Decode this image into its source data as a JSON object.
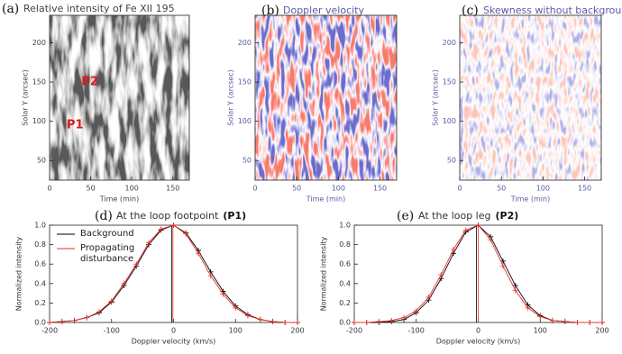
{
  "chart_data": [
    {
      "type": "image",
      "panel_label": "(a)",
      "title": "Relative intensity of Fe XII 195",
      "xlabel": "Time (min)",
      "ylabel": "Solar Y (arcsec)",
      "text_color": "#444444",
      "xlim": [
        0,
        170
      ],
      "xticks": [
        0,
        50,
        100,
        150
      ],
      "ylim": [
        25,
        235
      ],
      "yticks": [
        50,
        100,
        150,
        200
      ],
      "annotations": [
        "P1",
        "P2"
      ]
    },
    {
      "type": "image",
      "panel_label": "(b)",
      "title": "Doppler velocity",
      "xlabel": "Time (min)",
      "ylabel": "Solar Y (arcsec)",
      "text_color": "#5a5aa8",
      "xlim": [
        0,
        170
      ],
      "xticks": [
        0,
        50,
        100,
        150
      ],
      "ylim": [
        25,
        235
      ],
      "yticks": [
        50,
        100,
        150,
        200
      ]
    },
    {
      "type": "image",
      "panel_label": "(c)",
      "title": "Skewness without background",
      "xlabel": "Time (min)",
      "ylabel": "Solar Y (arcsec)",
      "text_color": "#5a5aa8",
      "xlim": [
        0,
        170
      ],
      "xticks": [
        0,
        50,
        100,
        150
      ],
      "ylim": [
        25,
        235
      ],
      "yticks": [
        50,
        100,
        150,
        200
      ]
    },
    {
      "type": "line",
      "panel_label": "(d)",
      "title": "At the loop footpoint",
      "title_tag": "(P1)",
      "xlabel": "Doppler velocity (km/s)",
      "ylabel": "Normalized intensity",
      "text_color": "#333333",
      "legend": true,
      "xlim": [
        -200,
        200
      ],
      "xticks": [
        -200,
        -100,
        0,
        100,
        200
      ],
      "ylim": [
        0,
        1
      ],
      "yticks": [
        {
          "value": 0,
          "label": "0.0"
        },
        0.2,
        0.4,
        0.6,
        0.8,
        {
          "value": 1,
          "label": "1.0"
        }
      ],
      "x": [
        -200,
        -180,
        -160,
        -140,
        -120,
        -100,
        -80,
        -60,
        -40,
        -20,
        0,
        20,
        40,
        60,
        80,
        100,
        120,
        140,
        160,
        180,
        200
      ],
      "series": [
        {
          "name": "Background",
          "color": "#000000",
          "centroid": -3,
          "values": [
            0.0,
            0.01,
            0.02,
            0.05,
            0.1,
            0.21,
            0.38,
            0.58,
            0.8,
            0.95,
            1.0,
            0.92,
            0.74,
            0.52,
            0.32,
            0.17,
            0.08,
            0.03,
            0.01,
            0.0,
            0.0
          ]
        },
        {
          "name": "Propagating disturbance",
          "color": "#e8322a",
          "centroid": -1,
          "values": [
            0.0,
            0.01,
            0.02,
            0.05,
            0.11,
            0.22,
            0.4,
            0.6,
            0.82,
            0.96,
            1.0,
            0.91,
            0.71,
            0.48,
            0.29,
            0.15,
            0.07,
            0.03,
            0.01,
            0.0,
            0.0
          ]
        }
      ]
    },
    {
      "type": "line",
      "panel_label": "(e)",
      "title": "At the loop leg",
      "title_tag": "(P2)",
      "xlabel": "Doppler velocity (km/s)",
      "ylabel": "Normalized intensity",
      "text_color": "#333333",
      "legend": false,
      "xlim": [
        -200,
        200
      ],
      "xticks": [
        -200,
        -100,
        0,
        100,
        200
      ],
      "ylim": [
        0,
        1
      ],
      "yticks": [
        {
          "value": 0,
          "label": "0.0"
        },
        0.2,
        0.4,
        0.6,
        0.8,
        {
          "value": 1,
          "label": "1.0"
        }
      ],
      "x": [
        -200,
        -180,
        -160,
        -140,
        -120,
        -100,
        -80,
        -60,
        -40,
        -20,
        0,
        20,
        40,
        60,
        80,
        100,
        120,
        140,
        160,
        180,
        200
      ],
      "series": [
        {
          "name": "Background",
          "color": "#000000",
          "centroid": -3,
          "values": [
            0.0,
            0.0,
            0.0,
            0.01,
            0.03,
            0.1,
            0.23,
            0.45,
            0.71,
            0.93,
            1.0,
            0.88,
            0.63,
            0.38,
            0.18,
            0.07,
            0.02,
            0.01,
            0.0,
            0.0,
            0.0
          ]
        },
        {
          "name": "Propagating disturbance",
          "color": "#e8322a",
          "centroid": 0,
          "values": [
            0.0,
            0.0,
            0.01,
            0.02,
            0.05,
            0.12,
            0.26,
            0.49,
            0.75,
            0.95,
            1.0,
            0.85,
            0.58,
            0.33,
            0.15,
            0.06,
            0.02,
            0.01,
            0.0,
            0.0,
            0.0
          ]
        }
      ]
    }
  ]
}
